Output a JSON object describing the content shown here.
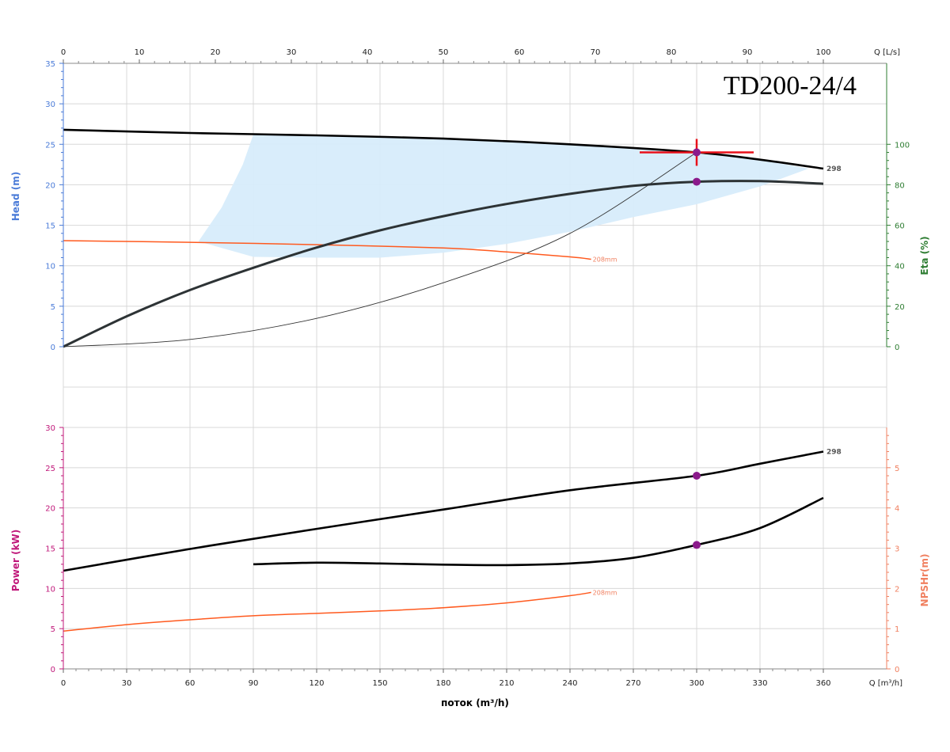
{
  "chart_data": {
    "type": "line",
    "title": "TD200-24/4",
    "colors": {
      "head_axis": "#4a7bd8",
      "eta_axis": "#2e7d32",
      "power_axis": "#c0187a",
      "npsh_axis": "#f08060",
      "curve": "#000000",
      "small_curve": "#ff5a1f",
      "region": "#d7ecfb",
      "marker": "#8b1a8b",
      "cross": "#e8101a",
      "grid": "#d8d8d8"
    },
    "x_axis_top": {
      "label": "Q [L/s]",
      "ticks": [
        "0",
        "10",
        "20",
        "30",
        "40",
        "50",
        "60",
        "70",
        "80",
        "90",
        "100"
      ],
      "range": [
        0,
        100
      ]
    },
    "x_axis_bottom": {
      "label": "Q [m³/h]",
      "title": "поток (m³/h)",
      "ticks": [
        "0",
        "30",
        "60",
        "90",
        "120",
        "150",
        "180",
        "210",
        "240",
        "270",
        "300",
        "330",
        "360"
      ],
      "range": [
        0,
        360
      ]
    },
    "head_panel": {
      "ylabel_left": "Head (m)",
      "ylabel_right": "Eta (%)",
      "left_ticks": [
        "0",
        "5",
        "10",
        "15",
        "20",
        "25",
        "30",
        "35"
      ],
      "left_range": [
        0,
        35
      ],
      "right_ticks": [
        "0",
        "20",
        "40",
        "60",
        "80",
        "100"
      ],
      "right_range": [
        0,
        140
      ],
      "curve_label": "298",
      "small_label": "208mm",
      "head_298": [
        [
          0,
          26.8
        ],
        [
          60,
          26.4
        ],
        [
          120,
          26.1
        ],
        [
          180,
          25.7
        ],
        [
          240,
          25.0
        ],
        [
          300,
          24.0
        ],
        [
          330,
          23.1
        ],
        [
          360,
          22.0
        ]
      ],
      "eta_298": [
        [
          0,
          0
        ],
        [
          30,
          15
        ],
        [
          60,
          28
        ],
        [
          90,
          39
        ],
        [
          120,
          49
        ],
        [
          150,
          57.5
        ],
        [
          180,
          64.5
        ],
        [
          210,
          70.5
        ],
        [
          240,
          75.5
        ],
        [
          270,
          79.5
        ],
        [
          300,
          81.5
        ],
        [
          330,
          81.8
        ],
        [
          360,
          80.5
        ]
      ],
      "head_208": [
        [
          0,
          13.1
        ],
        [
          60,
          12.9
        ],
        [
          120,
          12.6
        ],
        [
          180,
          12.2
        ],
        [
          210,
          11.7
        ],
        [
          240,
          11.1
        ],
        [
          250,
          10.8
        ]
      ],
      "system_curve_head": [
        [
          0,
          0
        ],
        [
          60,
          0.9
        ],
        [
          120,
          3.5
        ],
        [
          180,
          7.9
        ],
        [
          240,
          14.0
        ],
        [
          300,
          24.0
        ]
      ],
      "operating_point": {
        "q": 300,
        "head": 24.0,
        "eta": 81.5
      },
      "region_upper": [
        [
          90,
          26.2
        ],
        [
          150,
          25.9
        ],
        [
          210,
          25.4
        ],
        [
          270,
          24.6
        ],
        [
          330,
          23.1
        ],
        [
          353,
          22.0
        ]
      ],
      "region_lower": [
        [
          353,
          22.0
        ],
        [
          330,
          19.8
        ],
        [
          300,
          17.6
        ],
        [
          270,
          16.0
        ],
        [
          240,
          14.2
        ],
        [
          210,
          12.7
        ],
        [
          180,
          11.6
        ],
        [
          150,
          11.0
        ],
        [
          120,
          11.0
        ],
        [
          90,
          11.1
        ],
        [
          64,
          13.0
        ],
        [
          75,
          17.2
        ],
        [
          85,
          22.5
        ],
        [
          90,
          26.2
        ]
      ]
    },
    "power_panel": {
      "ylabel_left": "Power (kW)",
      "ylabel_right": "NPSHr(m)",
      "left_ticks": [
        "0",
        "5",
        "10",
        "15",
        "20",
        "25",
        "30"
      ],
      "left_range": [
        0,
        30
      ],
      "right_ticks": [
        "0",
        "1",
        "2",
        "3",
        "4",
        "5"
      ],
      "right_range": [
        0,
        6
      ],
      "curve_label": "298",
      "small_label": "208mm",
      "power_298": [
        [
          0,
          12.2
        ],
        [
          60,
          14.9
        ],
        [
          120,
          17.4
        ],
        [
          180,
          19.8
        ],
        [
          240,
          22.2
        ],
        [
          300,
          24.0
        ],
        [
          330,
          25.5
        ],
        [
          360,
          27.0
        ]
      ],
      "npsh_298": [
        [
          90,
          2.6
        ],
        [
          120,
          2.64
        ],
        [
          150,
          2.62
        ],
        [
          180,
          2.59
        ],
        [
          210,
          2.58
        ],
        [
          240,
          2.62
        ],
        [
          270,
          2.76
        ],
        [
          300,
          3.08
        ],
        [
          330,
          3.5
        ],
        [
          360,
          4.25
        ]
      ],
      "power_208": [
        [
          0,
          4.7
        ],
        [
          30,
          5.5
        ],
        [
          60,
          6.1
        ],
        [
          90,
          6.6
        ],
        [
          120,
          6.9
        ],
        [
          150,
          7.2
        ],
        [
          180,
          7.6
        ],
        [
          210,
          8.2
        ],
        [
          240,
          9.1
        ],
        [
          250,
          9.5
        ]
      ],
      "operating_point": {
        "q": 300,
        "power": 24.0,
        "npsh": 3.08
      }
    }
  }
}
